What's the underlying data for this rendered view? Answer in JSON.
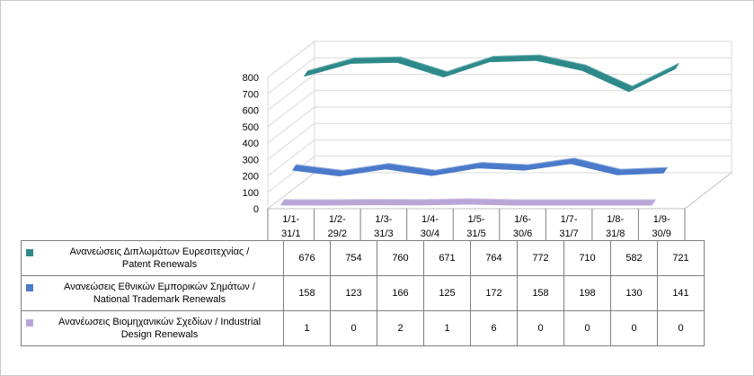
{
  "chart_data": {
    "type": "line",
    "categories": [
      [
        "1/1-",
        "31/1"
      ],
      [
        "1/2-",
        "29/2"
      ],
      [
        "1/3-",
        "31/3"
      ],
      [
        "1/4-",
        "30/4"
      ],
      [
        "1/5-",
        "31/5"
      ],
      [
        "1/6-",
        "30/6"
      ],
      [
        "1/7-",
        "31/7"
      ],
      [
        "1/8-",
        "31/8"
      ],
      [
        "1/9-",
        "30/9"
      ]
    ],
    "yticks": [
      "0",
      "100",
      "200",
      "300",
      "400",
      "500",
      "600",
      "700",
      "800"
    ],
    "ylim": [
      0,
      800
    ],
    "grid": true,
    "legend": "table-below",
    "series": [
      {
        "name_lines": [
          "Ανανεώσεις Διπλωμάτων Ευρεσιτεχνίας  /",
          "Patent Renewals"
        ],
        "values": [
          676,
          754,
          760,
          671,
          764,
          772,
          710,
          582,
          721
        ],
        "color": "#2e8a8a"
      },
      {
        "name_lines": [
          "Ανανεώσεις Εθνικών Εμπορικών Σημάτων /",
          "National Trademark Renewals"
        ],
        "values": [
          158,
          123,
          166,
          125,
          172,
          158,
          198,
          130,
          141
        ],
        "color": "#4a7ac9"
      },
      {
        "name_lines": [
          "Ανανέωσεις Βιομηχανικών Σχεδίων / Industrial",
          "Design Renewals"
        ],
        "values": [
          1,
          0,
          2,
          1,
          6,
          0,
          0,
          0,
          0
        ],
        "color": "#b9a6d6"
      }
    ]
  }
}
